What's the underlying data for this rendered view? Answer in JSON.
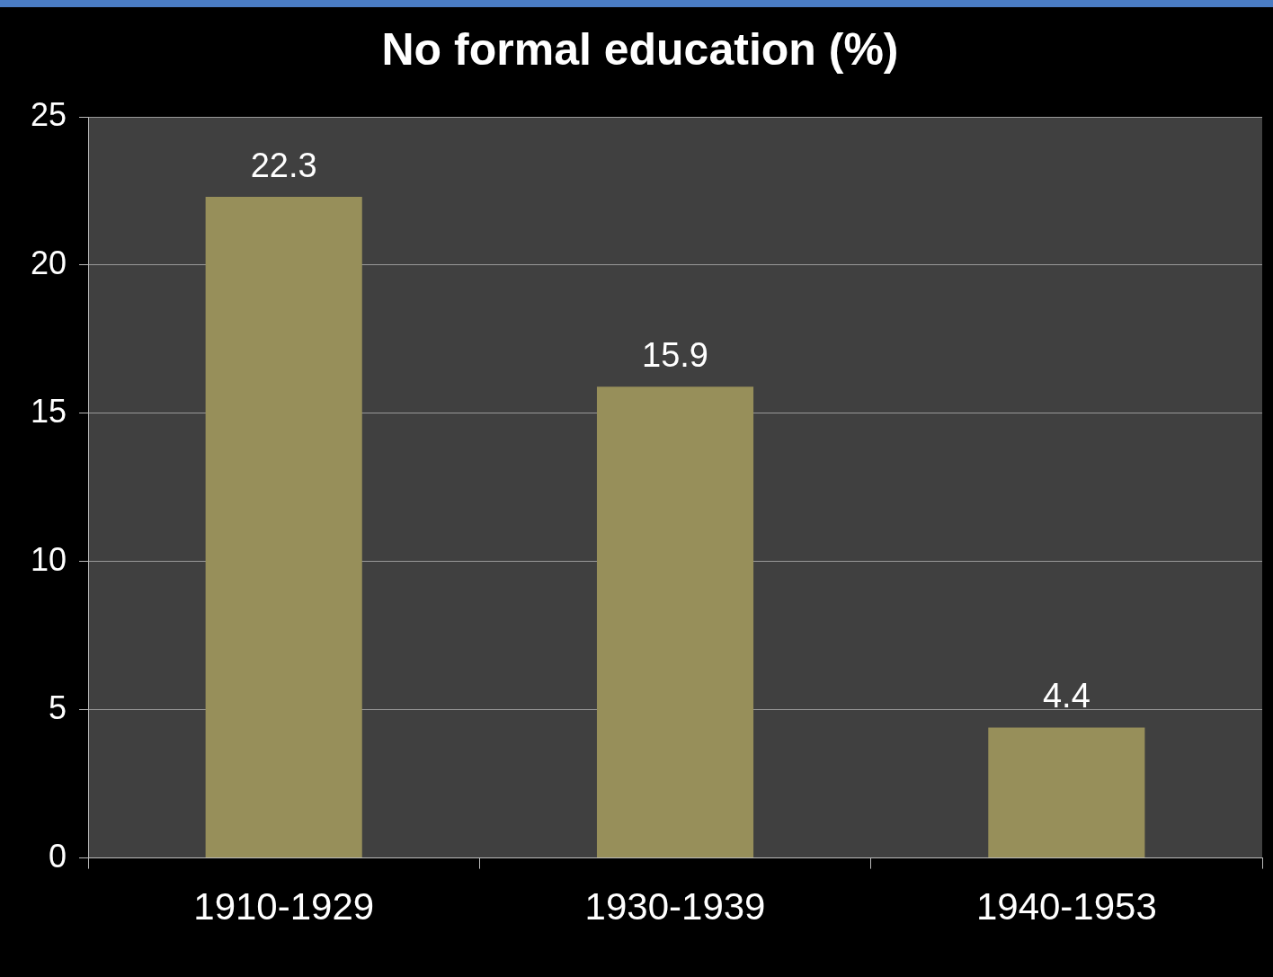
{
  "chart_data": {
    "type": "bar",
    "title": "No formal education (%)",
    "categories": [
      "1910-1929",
      "1930-1939",
      "1940-1953"
    ],
    "values": [
      22.3,
      15.9,
      4.4
    ],
    "color": "#978f5a",
    "ylim": [
      0,
      25
    ],
    "yticks": [
      0,
      5,
      10,
      15,
      20,
      25
    ],
    "grid": "y",
    "data_labels": true
  }
}
